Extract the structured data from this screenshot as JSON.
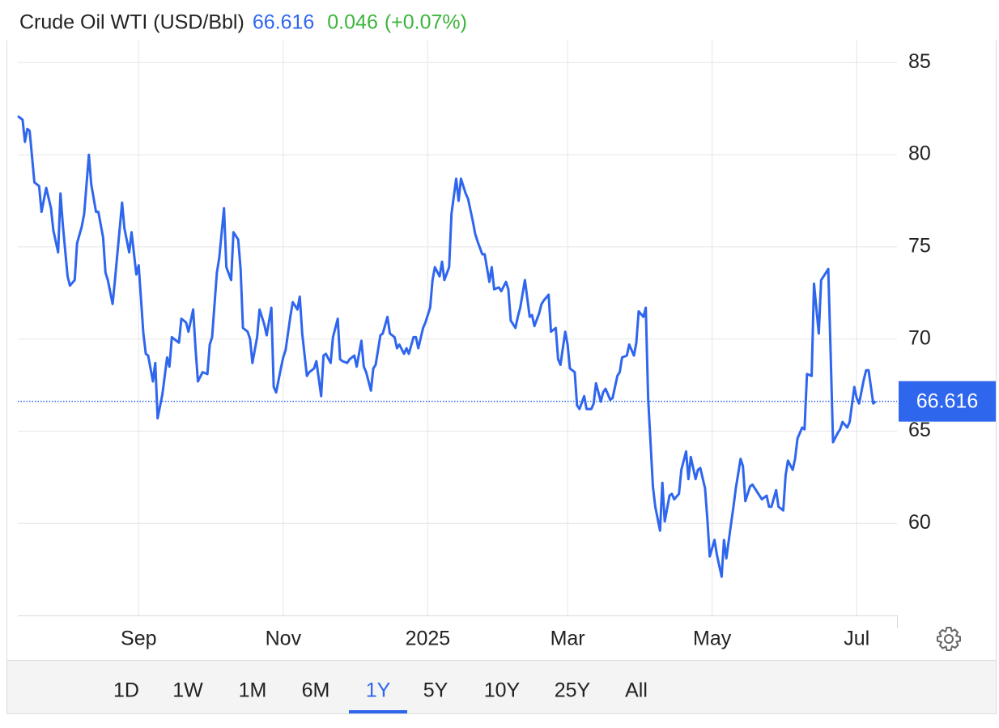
{
  "chart_data": {
    "type": "line",
    "title": "Crude Oil WTI (USD/Bbl)",
    "change": 0.046,
    "change_pct": {
      "value": 0.07,
      "label": "(+0.07%)"
    },
    "x": [
      0,
      2,
      3,
      4,
      5,
      7,
      9,
      10,
      12,
      14,
      15,
      17,
      18,
      19,
      21,
      22,
      24,
      25,
      27,
      28,
      30,
      31,
      33,
      34,
      36,
      37,
      38,
      40,
      41,
      44,
      45,
      47,
      48,
      50,
      51,
      53,
      54,
      55,
      57,
      58,
      59,
      61,
      63,
      64,
      65,
      67,
      68,
      69,
      71,
      72,
      74,
      75,
      76,
      78,
      80,
      81,
      82,
      84,
      85,
      87,
      88,
      90,
      91,
      93,
      94,
      95,
      97,
      98,
      99,
      101,
      102,
      104,
      105,
      107,
      108,
      109,
      111,
      112,
      113,
      115,
      116,
      118,
      119,
      120,
      122,
      123,
      125,
      126,
      128,
      129,
      130,
      132,
      133,
      135,
      136,
      137,
      139,
      140,
      142,
      143,
      145,
      146,
      147,
      149,
      150,
      151,
      153,
      154,
      156,
      157,
      159,
      160,
      161,
      163,
      164,
      165,
      167,
      168,
      169,
      171,
      172,
      174,
      175,
      176,
      178,
      179,
      180,
      182,
      183,
      185,
      186,
      187,
      189,
      190,
      192,
      193,
      194,
      196,
      197,
      199,
      200,
      201,
      203,
      204,
      206,
      207,
      208,
      210,
      211,
      212,
      214,
      216,
      217,
      218,
      220,
      221,
      222,
      224,
      225,
      227,
      228,
      229,
      231,
      232,
      233,
      235,
      236,
      237,
      239,
      240,
      242,
      243,
      244,
      246,
      247,
      248,
      250,
      251,
      253,
      254,
      255,
      257,
      258,
      260,
      261,
      262,
      264,
      265,
      266,
      268,
      269,
      271,
      272,
      273,
      275,
      276,
      277,
      279,
      280,
      282,
      283,
      284,
      286,
      287,
      288,
      290,
      291,
      292,
      294,
      295,
      297,
      298,
      299,
      301,
      302,
      303,
      305,
      306,
      307,
      309,
      310,
      311,
      313,
      314,
      316,
      317,
      318,
      320,
      321,
      323,
      324,
      325,
      327,
      328,
      329,
      331,
      332,
      333,
      335,
      336,
      338,
      339,
      340,
      342,
      343,
      344,
      346,
      347,
      348,
      350,
      351,
      353,
      354,
      355,
      357,
      358,
      359,
      361,
      362
    ],
    "series": [
      {
        "name": "Crude Oil WTI",
        "color": "#2f66ee",
        "values": [
          82.1,
          81.9,
          80.7,
          81.4,
          81.3,
          78.5,
          78.3,
          76.9,
          78.2,
          77.1,
          75.9,
          74.7,
          77.9,
          76.2,
          73.4,
          72.9,
          73.2,
          75.2,
          76.1,
          76.8,
          80.0,
          78.4,
          76.9,
          76.9,
          75.5,
          73.6,
          73.2,
          71.9,
          73.2,
          77.4,
          76.0,
          74.7,
          75.8,
          73.5,
          74.0,
          70.3,
          69.2,
          69.1,
          67.7,
          68.7,
          65.7,
          67.0,
          69.0,
          68.5,
          70.1,
          69.9,
          69.8,
          71.1,
          70.9,
          70.4,
          71.6,
          69.5,
          67.7,
          68.2,
          68.1,
          69.7,
          70.1,
          73.6,
          74.4,
          77.1,
          73.9,
          73.2,
          75.8,
          75.4,
          73.8,
          70.6,
          70.4,
          70.0,
          68.7,
          70.1,
          71.6,
          70.8,
          70.2,
          71.7,
          67.4,
          67.1,
          68.4,
          69.0,
          69.4,
          71.2,
          72.0,
          71.6,
          72.3,
          70.3,
          68.0,
          68.2,
          68.4,
          68.8,
          66.9,
          69.1,
          69.2,
          68.7,
          70.1,
          71.1,
          68.9,
          68.8,
          68.7,
          68.9,
          69.1,
          68.5,
          69.9,
          68.5,
          68.2,
          67.2,
          68.4,
          68.6,
          70.2,
          70.3,
          71.2,
          70.3,
          70.1,
          69.5,
          69.7,
          69.2,
          69.5,
          69.2,
          70.1,
          70.1,
          69.5,
          70.6,
          70.9,
          71.7,
          73.2,
          73.9,
          73.4,
          74.2,
          73.2,
          73.9,
          76.8,
          78.7,
          77.5,
          78.7,
          77.9,
          77.6,
          76.4,
          75.7,
          75.3,
          74.6,
          74.6,
          73.1,
          73.9,
          72.7,
          72.8,
          72.6,
          73.1,
          72.7,
          71.0,
          70.6,
          71.2,
          71.7,
          73.2,
          71.2,
          71.3,
          70.7,
          71.4,
          71.9,
          72.1,
          72.4,
          70.4,
          70.6,
          68.9,
          68.6,
          70.4,
          69.7,
          68.4,
          68.2,
          66.4,
          66.2,
          66.9,
          66.2,
          66.2,
          66.5,
          67.6,
          66.6,
          67.1,
          67.3,
          66.7,
          66.8,
          68.0,
          68.2,
          69.0,
          69.1,
          69.7,
          69.1,
          69.8,
          71.5,
          71.2,
          71.7,
          66.8,
          62.0,
          60.9,
          59.6,
          62.2,
          60.1,
          61.5,
          61.6,
          61.3,
          61.6,
          62.9,
          63.9,
          62.4,
          63.6,
          62.4,
          62.9,
          63.0,
          61.9,
          60.2,
          58.2,
          59.1,
          58.3,
          57.1,
          59.1,
          58.1,
          60.0,
          60.9,
          61.9,
          63.5,
          63.1,
          61.2,
          62.0,
          62.1,
          61.9,
          61.5,
          61.3,
          61.5,
          60.9,
          60.9,
          61.8,
          60.9,
          60.7,
          62.6,
          63.4,
          62.9,
          63.5,
          64.6,
          65.2,
          65.1,
          68.1,
          68.0,
          73.0,
          70.3,
          73.2,
          73.4,
          73.8,
          69.3,
          64.4,
          64.9,
          65.1,
          65.5,
          65.2,
          65.5,
          67.4,
          66.8,
          66.5,
          67.8,
          68.3,
          68.3,
          66.5,
          66.616
        ]
      }
    ],
    "xlim": [
      0,
      371
    ],
    "xticks": [
      {
        "value": 51,
        "label": "Sep"
      },
      {
        "value": 112,
        "label": "Nov"
      },
      {
        "value": 173,
        "label": "2025"
      },
      {
        "value": 232,
        "label": "Mar"
      },
      {
        "value": 293,
        "label": "May"
      },
      {
        "value": 354,
        "label": "Jul"
      }
    ],
    "ylim": [
      55,
      86.2
    ],
    "yticks": [
      60,
      65,
      70,
      75,
      80,
      85
    ],
    "grid": true,
    "ranges": [
      "1D",
      "1W",
      "1M",
      "6M",
      "1Y",
      "5Y",
      "10Y",
      "25Y",
      "All"
    ],
    "selected_range": "1Y"
  }
}
